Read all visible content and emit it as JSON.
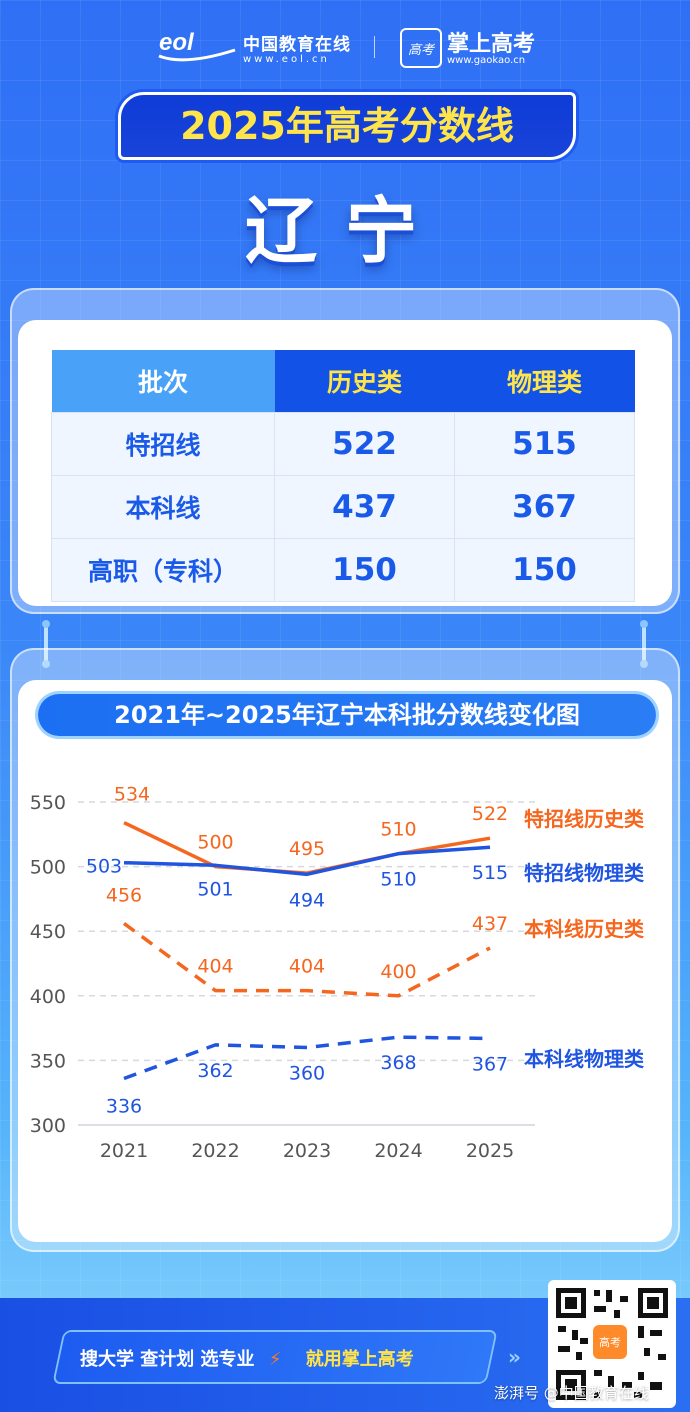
{
  "header": {
    "eol_name": "中国教育在线",
    "eol_url": "www.eol.cn",
    "gk_logo_text": "高考",
    "gk_name": "掌上高考",
    "gk_url": "www.gaokao.cn"
  },
  "title": "2025年高考分数线",
  "province": "辽宁",
  "score_table": {
    "headers": [
      "批次",
      "历史类",
      "物理类"
    ],
    "rows": [
      {
        "label": "特招线",
        "history": "522",
        "physics": "515"
      },
      {
        "label": "本科线",
        "history": "437",
        "physics": "367"
      },
      {
        "label": "高职（专科）",
        "history": "150",
        "physics": "150"
      }
    ]
  },
  "chart_title": "2021年~2025年辽宁本科批分数线变化图",
  "chart_data": {
    "type": "line",
    "x": [
      "2021",
      "2022",
      "2023",
      "2024",
      "2025"
    ],
    "ylim": [
      300,
      550
    ],
    "yticks": [
      300,
      350,
      400,
      450,
      500,
      550
    ],
    "grid": true,
    "legend": "right",
    "series": [
      {
        "name": "特招线历史类",
        "values": [
          534,
          500,
          495,
          510,
          522
        ],
        "color": "#f5661e",
        "style": "solid"
      },
      {
        "name": "特招线物理类",
        "values": [
          503,
          501,
          494,
          510,
          515
        ],
        "color": "#1f55e0",
        "style": "solid"
      },
      {
        "name": "本科线历史类",
        "values": [
          456,
          404,
          404,
          400,
          437
        ],
        "color": "#f5661e",
        "style": "dashed"
      },
      {
        "name": "本科线物理类",
        "values": [
          336,
          362,
          360,
          368,
          367
        ],
        "color": "#1f55e0",
        "style": "dashed"
      }
    ]
  },
  "footer": {
    "slogan": "搜大学  查计划  选专业",
    "slogan_accent": "就用掌上高考",
    "qr_center": "高考",
    "watermark": "澎湃号 @中国教育在线"
  },
  "colors": {
    "title_yellow": "#ffe44a",
    "primary_blue": "#1a5ae8",
    "history_orange": "#f5661e"
  }
}
